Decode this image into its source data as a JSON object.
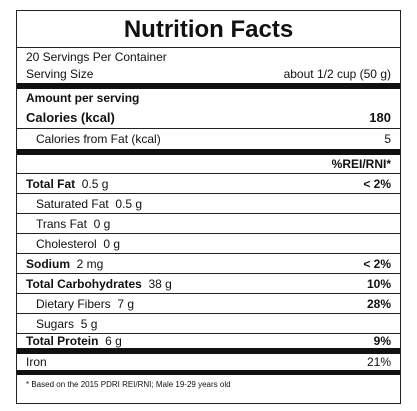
{
  "title": "Nutrition Facts",
  "servings": "20 Servings Per Container",
  "serving_size": {
    "label": "Serving Size",
    "value": "about 1/2 cup (50 g)"
  },
  "amount_header": "Amount per serving",
  "calories": {
    "label": "Calories (kcal)",
    "value": "180"
  },
  "calories_from_fat": {
    "label": "Calories from Fat (kcal)",
    "value": "5"
  },
  "dv_header": "%REI/RNI*",
  "nutrients": [
    {
      "name": "Total Fat",
      "amount": "0.5 g",
      "dv": "< 2%",
      "bold": true
    },
    {
      "name": "Saturated Fat",
      "amount": "0.5 g",
      "bold": false
    },
    {
      "name": "Trans Fat",
      "amount": "0 g",
      "bold": false
    },
    {
      "name": "Cholesterol",
      "amount": "0 g",
      "bold": false
    },
    {
      "name": "Sodium",
      "amount": "2 mg",
      "dv": "< 2%",
      "bold": true
    },
    {
      "name": "Total Carbohydrates",
      "amount": "38 g",
      "dv": "10%",
      "bold": true
    },
    {
      "name": "Dietary Fibers",
      "amount": "7 g",
      "dv": "28%",
      "bold": false
    },
    {
      "name": "Sugars",
      "amount": "5 g",
      "bold": false
    },
    {
      "name": "Total Protein",
      "amount": "6 g",
      "dv": "9%",
      "bold": true
    }
  ],
  "minerals": [
    {
      "name": "Iron",
      "dv": "21%",
      "bold": false
    }
  ],
  "footnote": "* Based on the 2015 PDRI REI/RNI; Male 19-29 years old"
}
